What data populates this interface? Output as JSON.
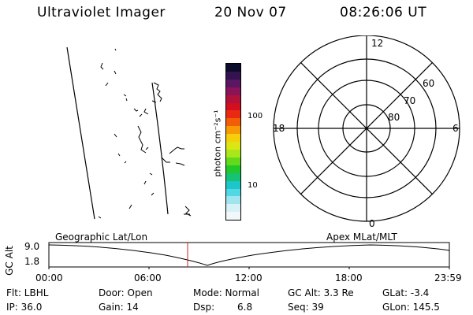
{
  "header": {
    "title": "Ultraviolet Imager",
    "date": "20 Nov 07",
    "time": "08:26:06 UT"
  },
  "colorbar": {
    "label": "photon cm⁻²s⁻¹",
    "ticks": [
      "100",
      "10"
    ],
    "colors": [
      "#0b0b2a",
      "#33124f",
      "#5a1563",
      "#8a1457",
      "#b0123a",
      "#d20e1f",
      "#ea2a10",
      "#f35d07",
      "#f79a05",
      "#f6cf0a",
      "#dbe614",
      "#a8e81b",
      "#62d91b",
      "#20c92a",
      "#16c276",
      "#1cc6c9",
      "#52d7e4",
      "#9fe4ee",
      "#d6f2f6",
      "#f2f8f9"
    ]
  },
  "polar": {
    "labels": {
      "top": "12",
      "right": "6",
      "bottom": "0",
      "left": "18"
    },
    "lat_labels": [
      "60",
      "70",
      "80"
    ]
  },
  "timeline": {
    "left_label": "Geographic Lat/Lon",
    "right_label": "Apex MLat/MLT",
    "y_label": "GC Alt",
    "y_ticks": [
      "9.0",
      "1.8"
    ],
    "x_ticks": [
      "00:00",
      "06:00",
      "12:00",
      "18:00",
      "23:59"
    ]
  },
  "footer": {
    "filter": "Flt: LBHL",
    "door": "Door: Open",
    "mode": "Mode: Normal",
    "gc_alt": "GC Alt: 3.3 Re",
    "glat": "GLat:  -3.4",
    "ip": "IP: 36.0",
    "gain": "Gain: 14",
    "dsp_label": "Dsp:",
    "dsp_value": "6.8",
    "seq": "Seq: 39",
    "glon": "GLon: 145.5"
  }
}
